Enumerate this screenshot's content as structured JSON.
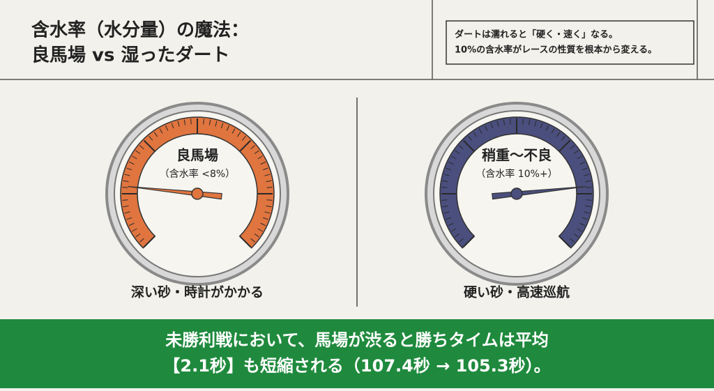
{
  "header": {
    "title_line1": "含水率（水分量）の魔法：",
    "title_line2": "良馬場 vs 湿ったダート",
    "note_line1": "ダートは濡れると「硬く・速く」なる。",
    "note_line2": "10%の含水率がレースの性質を根本から変える。"
  },
  "gauges": [
    {
      "label": "良馬場",
      "sublabel": "（含水率 <8%）",
      "caption": "深い砂・時計がかかる"
    },
    {
      "label": "稍重〜不良",
      "sublabel": "（含水率 10%+）",
      "caption": "硬い砂・高速巡航"
    }
  ],
  "banner": {
    "line1": "未勝利戦において、馬場が渋ると勝ちタイムは平均",
    "line2": "【2.1秒】も短縮される（107.4秒 → 105.3秒）。"
  }
}
